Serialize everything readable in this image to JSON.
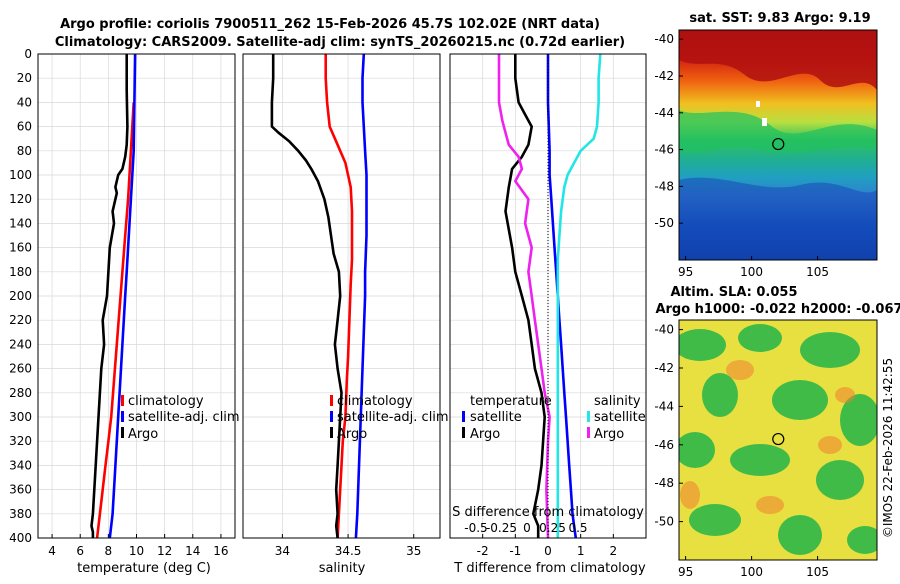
{
  "header": {
    "line1": "Argo profile: coriolis 7900511_262 15-Feb-2026 45.7S 102.02E (NRT data)",
    "line2": "Climatology: CARS2009. Satellite-adj clim: synTS_20260215.nc (0.72d earlier)"
  },
  "stamp": "©IMOS 22-Feb-2026 11:42:55",
  "colors": {
    "clim": "#ff0000",
    "sat": "#0000ff",
    "argo": "#000000",
    "sal_sat": "#22e5e5",
    "sal_argo": "#ee22ee",
    "grid": "#d9d9d9"
  },
  "chart_data": [
    {
      "type": "line",
      "id": "temperature",
      "xlabel": "temperature (deg C)",
      "xlim": [
        3,
        17
      ],
      "xticks": [
        4,
        6,
        8,
        10,
        12,
        14,
        16
      ],
      "ylim": [
        0,
        400
      ],
      "yticks": [
        0,
        20,
        40,
        60,
        80,
        100,
        120,
        140,
        160,
        180,
        200,
        220,
        240,
        260,
        280,
        300,
        320,
        340,
        360,
        380,
        400
      ],
      "legend": [
        "climatology",
        "satellite-adj. clim",
        "Argo"
      ],
      "series": [
        {
          "name": "climatology",
          "color": "#ff0000",
          "x": [
            9.8,
            9.7,
            9.6,
            9.5,
            9.4,
            9.2,
            9.0,
            8.8,
            8.6,
            8.4,
            8.2,
            8.0,
            7.8,
            7.6,
            7.4,
            7.2
          ],
          "y": [
            40,
            60,
            80,
            100,
            120,
            150,
            180,
            210,
            240,
            270,
            300,
            320,
            340,
            360,
            380,
            400
          ]
        },
        {
          "name": "satellite-adj. clim",
          "color": "#0000ff",
          "x": [
            9.9,
            9.85,
            9.8,
            9.7,
            9.6,
            9.5,
            9.4,
            9.3,
            9.2,
            9.1,
            9.0,
            8.9,
            8.7,
            8.5,
            8.3,
            8.1
          ],
          "y": [
            0,
            40,
            80,
            100,
            120,
            140,
            160,
            180,
            200,
            220,
            240,
            260,
            300,
            340,
            380,
            400
          ]
        },
        {
          "name": "Argo",
          "color": "#000000",
          "x": [
            9.3,
            9.3,
            9.35,
            9.3,
            9.2,
            9.0,
            8.7,
            8.5,
            8.6,
            8.3,
            8.4,
            8.1,
            8.0,
            7.9,
            7.6,
            7.7,
            7.5,
            7.4,
            7.3,
            7.2,
            7.1,
            7.0,
            6.9,
            6.8,
            6.9,
            6.9
          ],
          "y": [
            0,
            30,
            60,
            75,
            85,
            95,
            100,
            110,
            115,
            130,
            140,
            160,
            180,
            200,
            220,
            240,
            260,
            280,
            300,
            320,
            340,
            360,
            380,
            390,
            395,
            400
          ]
        }
      ]
    },
    {
      "type": "line",
      "id": "salinity",
      "xlabel": "salinity",
      "xlim": [
        33.7,
        35.2
      ],
      "xticks": [
        34,
        34.5,
        35
      ],
      "ylim": [
        0,
        400
      ],
      "legend": [
        "climatology",
        "satellite-adj. clim",
        "Argo"
      ],
      "series": [
        {
          "name": "climatology",
          "color": "#ff0000",
          "x": [
            34.33,
            34.33,
            34.34,
            34.36,
            34.42,
            34.48,
            34.52,
            34.53,
            34.53,
            34.53,
            34.52,
            34.51,
            34.5,
            34.49,
            34.48,
            34.46,
            34.45,
            34.44,
            34.43,
            34.42
          ],
          "y": [
            0,
            20,
            40,
            60,
            75,
            90,
            110,
            130,
            150,
            170,
            190,
            220,
            250,
            270,
            300,
            320,
            340,
            360,
            380,
            400
          ]
        },
        {
          "name": "satellite-adj. clim",
          "color": "#0000ff",
          "x": [
            34.62,
            34.61,
            34.61,
            34.62,
            34.63,
            34.64,
            34.64,
            34.64,
            34.63,
            34.63,
            34.62,
            34.61,
            34.6,
            34.59,
            34.58,
            34.57,
            34.56
          ],
          "y": [
            0,
            20,
            40,
            60,
            80,
            100,
            120,
            150,
            180,
            200,
            230,
            260,
            290,
            320,
            350,
            380,
            400
          ]
        },
        {
          "name": "Argo",
          "color": "#000000",
          "x": [
            33.93,
            33.93,
            33.92,
            33.92,
            33.97,
            34.05,
            34.12,
            34.18,
            34.22,
            34.27,
            34.32,
            34.35,
            34.37,
            34.39,
            34.43,
            34.44,
            34.42,
            34.4,
            34.42,
            34.45,
            34.44,
            34.43,
            34.42,
            34.41,
            34.42,
            34.41,
            34.42
          ],
          "y": [
            0,
            20,
            40,
            60,
            65,
            72,
            80,
            88,
            95,
            105,
            120,
            135,
            150,
            165,
            180,
            200,
            220,
            240,
            260,
            280,
            300,
            320,
            340,
            360,
            380,
            390,
            400
          ]
        }
      ]
    },
    {
      "type": "line",
      "id": "difference",
      "xlabel": "T difference from climatology",
      "xlabel2": "S difference from climatology",
      "xlim": [
        -3,
        3
      ],
      "xticks": [
        -2,
        -1,
        0,
        1,
        2
      ],
      "xticks2": [
        -0.5,
        -0.25,
        0,
        0.25,
        0.5
      ],
      "ylim": [
        0,
        400
      ],
      "legend_t_title": "temperature",
      "legend_s_title": "salinity",
      "legend": [
        "satellite",
        "Argo",
        "satellite",
        "Argo"
      ],
      "series": [
        {
          "name": "T satellite",
          "color": "#0000ff",
          "x": [
            0,
            0,
            0.05,
            0.05,
            0.1,
            0.15,
            0.2,
            0.25,
            0.3,
            0.35,
            0.4,
            0.45,
            0.5,
            0.55,
            0.6,
            0.65,
            0.7,
            0.75,
            0.8,
            0.85
          ],
          "y": [
            0,
            40,
            80,
            100,
            120,
            140,
            160,
            180,
            200,
            220,
            240,
            260,
            280,
            300,
            320,
            340,
            360,
            380,
            390,
            400
          ]
        },
        {
          "name": "T Argo",
          "color": "#000000",
          "x": [
            -1.0,
            -1.0,
            -0.9,
            -0.7,
            -0.5,
            -0.6,
            -0.8,
            -1.1,
            -1.2,
            -1.3,
            -1.1,
            -1.0,
            -0.8,
            -0.6,
            -0.5,
            -0.4,
            -0.2,
            -0.1,
            -0.15,
            -0.2,
            -0.3,
            -0.45,
            -0.3,
            -0.3
          ],
          "y": [
            0,
            20,
            40,
            50,
            60,
            75,
            85,
            95,
            110,
            130,
            160,
            180,
            200,
            220,
            240,
            260,
            280,
            300,
            320,
            340,
            360,
            380,
            390,
            400
          ]
        },
        {
          "name": "S satellite",
          "color": "#22e5e5",
          "x": [
            1.6,
            1.55,
            1.55,
            1.5,
            1.4,
            1.0,
            0.8,
            0.6,
            0.5,
            0.4,
            0.35,
            0.3,
            0.3,
            0.3,
            0.3,
            0.3,
            0.3,
            0.3,
            0.3,
            0.3,
            0.3,
            0.3
          ],
          "y": [
            0,
            20,
            40,
            60,
            70,
            80,
            90,
            100,
            110,
            130,
            150,
            170,
            190,
            210,
            230,
            250,
            270,
            300,
            330,
            360,
            390,
            400
          ]
        },
        {
          "name": "S Argo",
          "color": "#ee22ee",
          "x": [
            -1.5,
            -1.5,
            -1.5,
            -1.4,
            -1.3,
            -1.2,
            -0.9,
            -0.8,
            -1.0,
            -0.6,
            -0.7,
            -0.5,
            -0.6,
            -0.5,
            -0.4,
            -0.3,
            -0.2,
            -0.1,
            0.05,
            0.0,
            -0.05,
            0.0
          ],
          "y": [
            0,
            20,
            40,
            55,
            65,
            75,
            85,
            95,
            105,
            120,
            140,
            160,
            180,
            200,
            220,
            240,
            260,
            280,
            300,
            320,
            360,
            400
          ]
        }
      ]
    },
    {
      "type": "heatmap",
      "id": "sst_map",
      "title": "sat. SST: 9.83 Argo: 9.19",
      "xticks": [
        95,
        100,
        105
      ],
      "yticks": [
        -40,
        -42,
        -44,
        -46,
        -48,
        -50
      ],
      "xlim": [
        94.5,
        109.5
      ],
      "ylim": [
        -52,
        -39.5
      ],
      "marker": [
        102.02,
        -45.7
      ]
    },
    {
      "type": "heatmap",
      "id": "sla_map",
      "title": "Altim. SLA: 0.055",
      "subtitle": "Argo h1000: -0.022 h2000: -0.067",
      "xticks": [
        95,
        100,
        105
      ],
      "yticks": [
        -40,
        -42,
        -44,
        -46,
        -48,
        -50
      ],
      "xlim": [
        94.5,
        109.5
      ],
      "ylim": [
        -52,
        -39.5
      ],
      "marker": [
        102.02,
        -45.7
      ]
    }
  ]
}
